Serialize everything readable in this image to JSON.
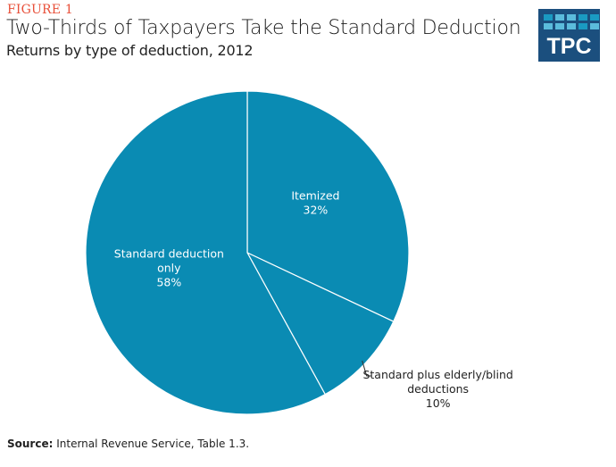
{
  "figure_label": "FIGURE 1",
  "title": "Two-Thirds of Taxpayers Take the Standard Deduction",
  "subtitle": "Returns by type of deduction, 2012",
  "logo": {
    "text": "TPC",
    "background": "#1B4F7E",
    "squares": [
      "#1A9AC2",
      "#5BBCDC",
      "#5BBCDC",
      "#1A9AC2",
      "#1A9AC2",
      "#5BBCDC",
      "#5BBCDC",
      "#5BBCDC",
      "#1A9AC2",
      "#5BBCDC"
    ]
  },
  "source": {
    "label": "Source:",
    "text": " Internal Revenue Service, Table 1.3."
  },
  "colors": {
    "slice_fill": "#0A8BB3",
    "slice_border": "#ffffff",
    "figure_label": "#E8503A"
  },
  "chart_data": {
    "type": "pie",
    "title": "Two-Thirds of Taxpayers Take the Standard Deduction",
    "subtitle": "Returns by type of deduction, 2012",
    "start_angle_deg": 0,
    "direction": "clockwise",
    "slices": [
      {
        "name": "Itemized",
        "value": 32,
        "label_lines": [
          "Itemized",
          "32%"
        ],
        "label_position": "inside"
      },
      {
        "name": "Standard plus elderly/blind deductions",
        "value": 10,
        "label_lines": [
          "Standard plus elderly/blind",
          "deductions",
          "10%"
        ],
        "label_position": "outside"
      },
      {
        "name": "Standard deduction only",
        "value": 58,
        "label_lines": [
          "Standard deduction",
          "only",
          "58%"
        ],
        "label_position": "inside"
      }
    ],
    "unit": "%",
    "legend": "none"
  }
}
